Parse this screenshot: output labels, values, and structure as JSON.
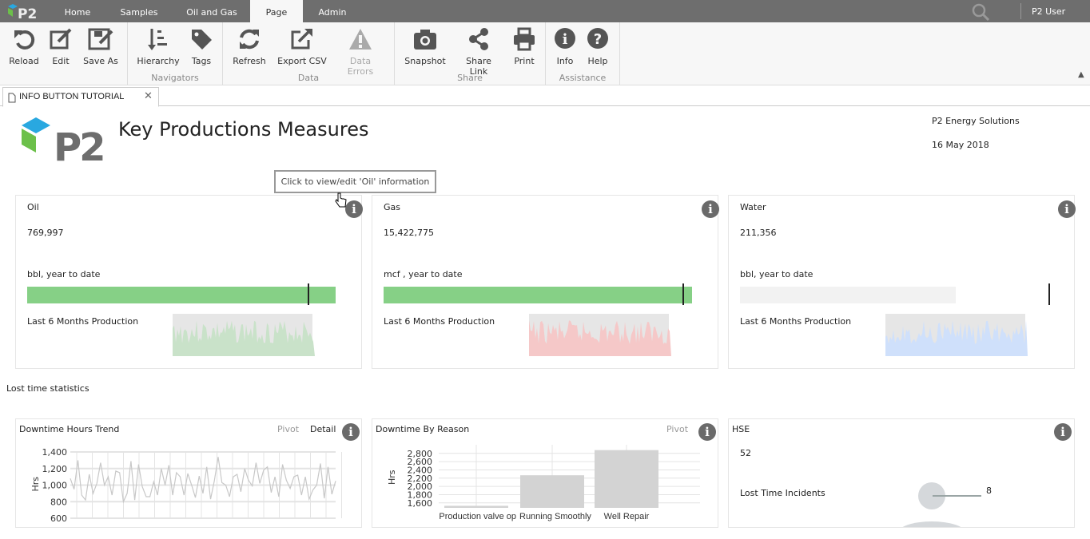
{
  "app": {
    "logo": "P2",
    "user": "P2 User"
  },
  "nav": {
    "tabs": [
      {
        "label": "Home"
      },
      {
        "label": "Samples"
      },
      {
        "label": "Oil and Gas"
      },
      {
        "label": "Page",
        "active": true
      },
      {
        "label": "Admin"
      }
    ]
  },
  "ribbon": {
    "reload": "Reload",
    "edit": "Edit",
    "save_as": "Save As",
    "hierarchy": "Hierarchy",
    "tags": "Tags",
    "navigators": "Navigators",
    "refresh": "Refresh",
    "export_csv": "Export CSV",
    "data_errors": "Data Errors",
    "data": "Data",
    "snapshot": "Snapshot",
    "share_link": "Share Link",
    "print": "Print",
    "share": "Share",
    "info": "Info",
    "help": "Help",
    "assistance": "Assistance"
  },
  "doc_tab": {
    "label": "INFO BUTTON TUTORIAL"
  },
  "header": {
    "title": "Key Productions Measures",
    "company": "P2 Energy Solutions",
    "date": "16 May 2018",
    "logo_text": "P2"
  },
  "tooltip": "Click to view/edit 'Oil' information",
  "colors": {
    "oil": "#86d086",
    "gas": "#86d086",
    "water_bar": "#f2f2f2",
    "oil_spark": "#c9e2c9",
    "gas_spark": "#f5c8c8",
    "water_spark": "#cfe0fb"
  },
  "kpis": [
    {
      "title": "Oil",
      "value": "769,997",
      "unit": "bbl, year to date",
      "progress": 1.0,
      "target": 0.91,
      "spark_label": "Last 6 Months Production"
    },
    {
      "title": "Gas",
      "value": "15,422,775",
      "unit": "mcf , year to date",
      "progress": 1.0,
      "target": 0.97,
      "spark_label": "Last 6 Months Production"
    },
    {
      "title": "Water",
      "value": "211,356",
      "unit": "bbl, year to date",
      "progress": 0.7,
      "target": 1.0,
      "spark_label": "Last 6 Months Production"
    }
  ],
  "section_label": "Lost time statistics",
  "chart_data": [
    {
      "type": "line",
      "title": "Downtime Hours Trend",
      "ylabel": "Hrs",
      "ylim": [
        600,
        1400
      ],
      "yticks": [
        "1,400",
        "1,200",
        "1,000",
        "800",
        "600"
      ],
      "grid": true,
      "actions": [
        "Pivot",
        "Detail"
      ],
      "values": [
        1080,
        950,
        1300,
        880,
        820,
        1130,
        900,
        1020,
        1270,
        1000,
        1100,
        880,
        1170,
        1150,
        800,
        900,
        1290,
        820,
        1250,
        980,
        860,
        860,
        1040,
        880,
        1200,
        1000,
        1240,
        880,
        1150,
        1100,
        880,
        1140,
        1000,
        850,
        1110,
        900,
        1220,
        830,
        1050,
        1340,
        1030,
        1000,
        860,
        1100,
        1130,
        920,
        1200,
        1060,
        990,
        1270,
        1020,
        1180,
        1220,
        910,
        1100,
        860,
        1250,
        1060,
        960,
        1100,
        1120,
        880,
        1100,
        830,
        940,
        1000,
        1260,
        840,
        1220,
        890,
        1050
      ]
    },
    {
      "type": "bar",
      "title": "Downtime By Reason",
      "ylabel": "Hrs",
      "ylim": [
        1480,
        2900
      ],
      "yticks": [
        "2,800",
        "2,600",
        "2,400",
        "2,200",
        "2,000",
        "1,800",
        "1,600"
      ],
      "actions": [
        "Pivot"
      ],
      "categories": [
        "Production valve op",
        "Running Smoothly",
        "Well Repair"
      ],
      "values": [
        1530,
        2270,
        2880
      ]
    }
  ],
  "hse": {
    "title": "HSE",
    "value": "52",
    "label": "Lost Time Incidents",
    "count": "8"
  }
}
